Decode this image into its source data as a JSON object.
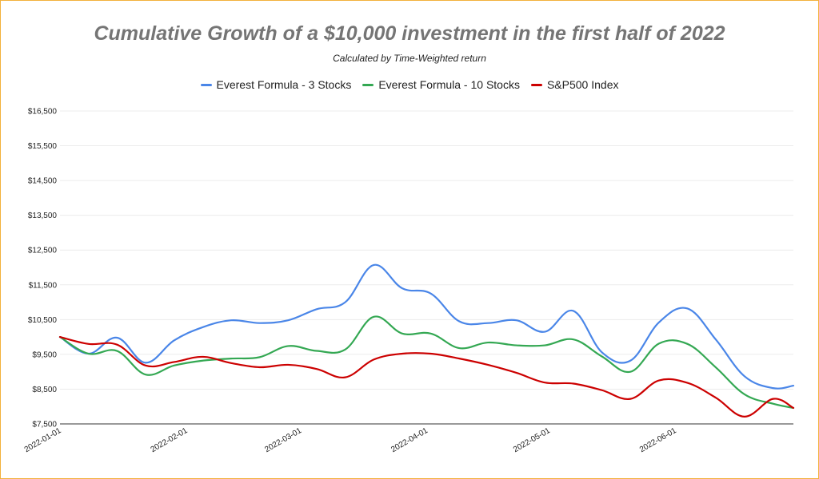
{
  "chart_data": {
    "type": "line",
    "title": "Cumulative Growth of a $10,000 investment in the first half of 2022",
    "subtitle": "Calculated by Time-Weighted return",
    "xlabel": "",
    "ylabel": "",
    "legend_position": "top",
    "grid": true,
    "ylim": [
      7500,
      16500
    ],
    "y_ticks": [
      7500,
      8500,
      9500,
      10500,
      11500,
      12500,
      13500,
      14500,
      15500,
      16500
    ],
    "y_tick_labels": [
      "$7,500",
      "$8,500",
      "$9,500",
      "$10,500",
      "$11,500",
      "$12,500",
      "$13,500",
      "$14,500",
      "$15,500",
      "$16,500"
    ],
    "x_range": [
      "2022-01-01",
      "2022-06-30"
    ],
    "x_ticks": [
      "2022-01-01",
      "2022-02-01",
      "2022-03-01",
      "2022-04-01",
      "2022-05-01",
      "2022-06-01"
    ],
    "x": [
      "2022-01-01",
      "2022-01-08",
      "2022-01-15",
      "2022-01-22",
      "2022-01-29",
      "2022-02-05",
      "2022-02-12",
      "2022-02-19",
      "2022-02-26",
      "2022-03-05",
      "2022-03-12",
      "2022-03-19",
      "2022-03-26",
      "2022-04-02",
      "2022-04-09",
      "2022-04-16",
      "2022-04-23",
      "2022-04-30",
      "2022-05-07",
      "2022-05-14",
      "2022-05-21",
      "2022-05-28",
      "2022-06-04",
      "2022-06-11",
      "2022-06-18",
      "2022-06-25",
      "2022-06-30"
    ],
    "series": [
      {
        "name": "Everest Formula - 3 Stocks",
        "color": "#4a86e8",
        "values": [
          10000,
          9520,
          9980,
          9260,
          9900,
          10280,
          10480,
          10400,
          10480,
          10800,
          11000,
          12070,
          11400,
          11250,
          10450,
          10400,
          10480,
          10150,
          10750,
          9560,
          9320,
          10420,
          10820,
          9920,
          8870,
          8530,
          8600
        ]
      },
      {
        "name": "Everest Formula - 10 Stocks",
        "color": "#34a853",
        "values": [
          10000,
          9520,
          9600,
          8920,
          9180,
          9320,
          9380,
          9420,
          9740,
          9600,
          9640,
          10580,
          10100,
          10100,
          9680,
          9840,
          9760,
          9760,
          9930,
          9440,
          9000,
          9810,
          9800,
          9120,
          8350,
          8080,
          7960
        ]
      },
      {
        "name": "S&P500 Index",
        "color": "#cc0000",
        "values": [
          10000,
          9800,
          9780,
          9180,
          9280,
          9430,
          9250,
          9130,
          9200,
          9080,
          8840,
          9350,
          9520,
          9520,
          9380,
          9200,
          8970,
          8690,
          8660,
          8470,
          8220,
          8750,
          8680,
          8250,
          7710,
          8220,
          7960
        ]
      }
    ]
  }
}
